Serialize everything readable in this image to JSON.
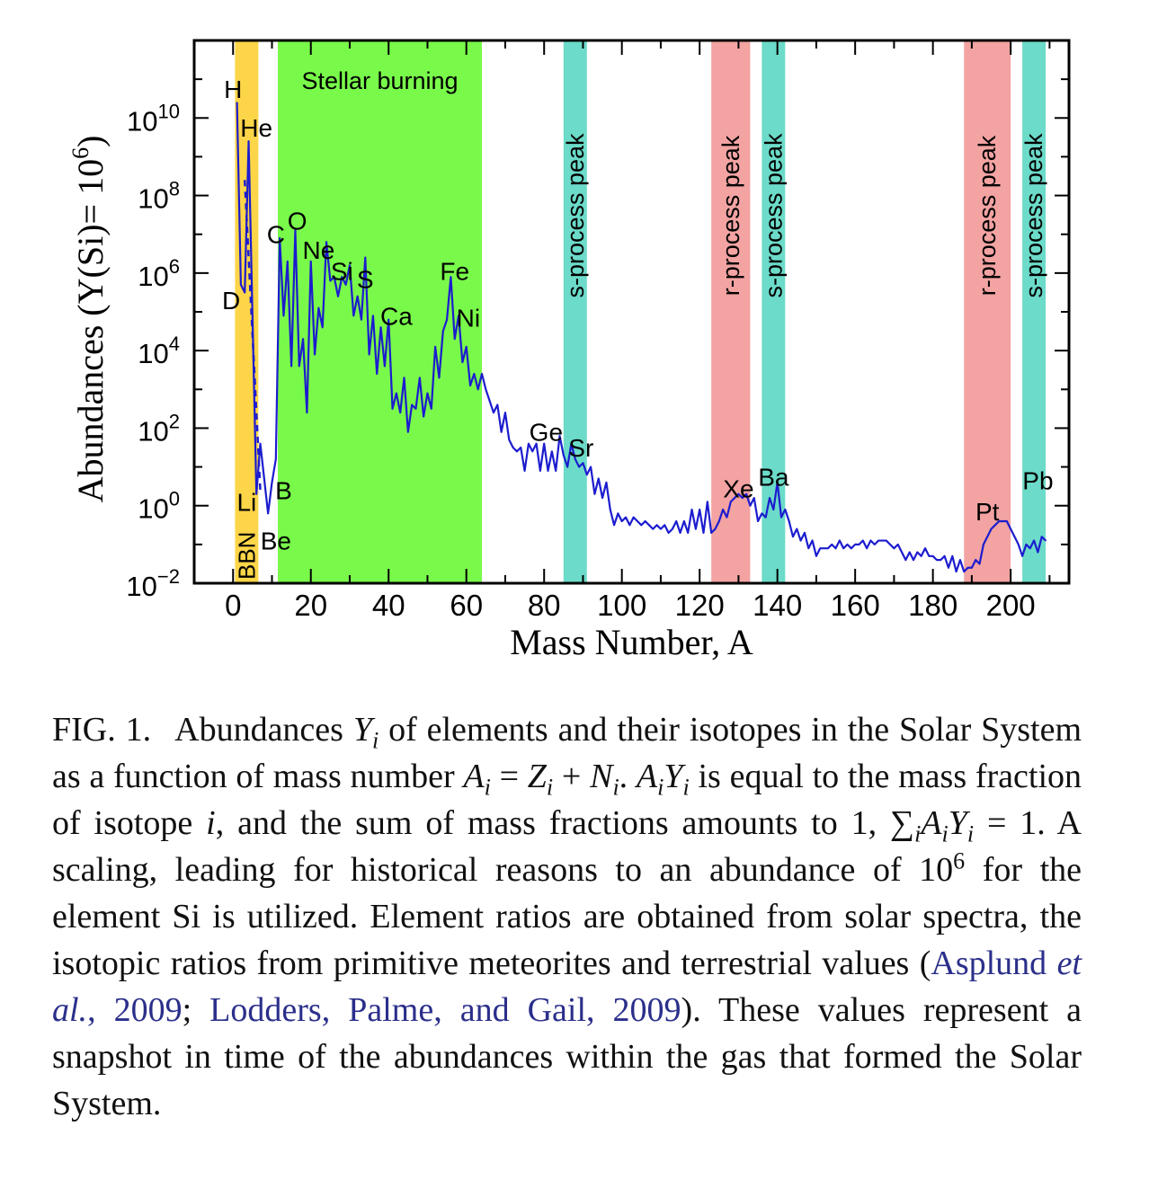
{
  "chart_data": {
    "type": "line",
    "xlabel": "Mass Number, A",
    "ylabel": "Abundances (Y(Si)= 10",
    "ylabel_exp": "6",
    "ylabel_close": ")",
    "xlim": [
      -10,
      215
    ],
    "ylim_log10": [
      -2,
      12
    ],
    "log_scale_y": true,
    "grid": false,
    "x_ticks": [
      0,
      20,
      40,
      60,
      80,
      100,
      120,
      140,
      160,
      180,
      200
    ],
    "x_tick_labels": [
      "0",
      "20",
      "40",
      "60",
      "80",
      "100",
      "120",
      "140",
      "160",
      "180",
      "200"
    ],
    "y_ticks": [
      {
        "base": "10",
        "exp": "−2",
        "value": -2
      },
      {
        "base": "10",
        "exp": "0",
        "value": 0
      },
      {
        "base": "10",
        "exp": "2",
        "value": 2
      },
      {
        "base": "10",
        "exp": "4",
        "value": 4
      },
      {
        "base": "10",
        "exp": "6",
        "value": 6
      },
      {
        "base": "10",
        "exp": "8",
        "value": 8
      },
      {
        "base": "10",
        "exp": "10",
        "value": 10
      }
    ],
    "line_color": "#1c1ccf",
    "bands": [
      {
        "x0": 0.5,
        "x1": 6.5,
        "color": "#fdd548",
        "label": "BBN",
        "orientation": "vertical-bottom"
      },
      {
        "x0": 11.5,
        "x1": 64,
        "color": "#79fa4a",
        "label": "Stellar burning",
        "orientation": "horizontal-top"
      },
      {
        "x0": 85,
        "x1": 91,
        "color": "#6cdbc9",
        "label": "s-process peak",
        "orientation": "vertical"
      },
      {
        "x0": 123,
        "x1": 133,
        "color": "#f2a3a2",
        "label": "r-process peak",
        "orientation": "vertical"
      },
      {
        "x0": 136,
        "x1": 142,
        "color": "#6cdbc9",
        "label": "s-process peak",
        "orientation": "vertical"
      },
      {
        "x0": 188,
        "x1": 200,
        "color": "#f2a3a2",
        "label": "r-process peak",
        "orientation": "vertical"
      },
      {
        "x0": 203,
        "x1": 209,
        "color": "#6cdbc9",
        "label": "s-process peak",
        "orientation": "vertical"
      }
    ],
    "bbn_dashed": {
      "x": [
        3,
        7
      ],
      "log10_y": [
        8.4,
        0.4
      ]
    },
    "series": [
      {
        "x": [
          1,
          2,
          3,
          4,
          6,
          7,
          9,
          10,
          11,
          12,
          13,
          14,
          15,
          16,
          17,
          18,
          19,
          20,
          21,
          22,
          23,
          24,
          25,
          26,
          27,
          28,
          29,
          30,
          31,
          32,
          33,
          34,
          35,
          36,
          37,
          38,
          39,
          40,
          41,
          42,
          43,
          44,
          45,
          46,
          47,
          48,
          49,
          50,
          51,
          52,
          53,
          54,
          55,
          56,
          57,
          58,
          59,
          60,
          61,
          62,
          63,
          64,
          65,
          66,
          67,
          68,
          69,
          70,
          71,
          72,
          73,
          74,
          75,
          76,
          77,
          78,
          79,
          80,
          81,
          82,
          83,
          84,
          85,
          86,
          87,
          88,
          89,
          90,
          91,
          92,
          93,
          94,
          95,
          96,
          97,
          98,
          99,
          100,
          101,
          102,
          103,
          104,
          105,
          106,
          107,
          108,
          109,
          110,
          111,
          112,
          113,
          114,
          115,
          116,
          117,
          118,
          119,
          120,
          121,
          122,
          123,
          124,
          125,
          126,
          127,
          128,
          129,
          130,
          131,
          132,
          133,
          134,
          135,
          136,
          137,
          138,
          139,
          140,
          141,
          142,
          143,
          144,
          145,
          146,
          147,
          148,
          149,
          150,
          151,
          152,
          153,
          154,
          155,
          156,
          157,
          158,
          159,
          160,
          161,
          162,
          163,
          164,
          165,
          166,
          167,
          168,
          169,
          170,
          171,
          172,
          173,
          174,
          175,
          176,
          177,
          178,
          179,
          180,
          181,
          182,
          183,
          184,
          185,
          186,
          187,
          188,
          189,
          190,
          191,
          192,
          193,
          194,
          195,
          196,
          197,
          198,
          199,
          200,
          201,
          202,
          203,
          204,
          205,
          206,
          207,
          208,
          209
        ],
        "log10_y": [
          10.4,
          5.7,
          5.5,
          9.4,
          0.3,
          1.6,
          -0.2,
          0.6,
          1.2,
          6.9,
          4.9,
          6.3,
          3.6,
          7.1,
          3.6,
          4.3,
          2.4,
          6.3,
          3.9,
          5.1,
          4.6,
          6.8,
          5.8,
          5.9,
          5.4,
          5.9,
          5.7,
          6.2,
          4.9,
          5.4,
          4.8,
          6.4,
          3.9,
          4.9,
          3.4,
          4.6,
          3.6,
          4.8,
          2.5,
          2.9,
          2.4,
          3.3,
          1.9,
          2.6,
          2.5,
          3.3,
          2.3,
          2.9,
          2.5,
          4.1,
          3.3,
          4.5,
          4.8,
          5.9,
          4.3,
          4.9,
          3.7,
          4.1,
          3.1,
          3.4,
          3.0,
          3.4,
          3.0,
          2.7,
          2.4,
          2.6,
          1.9,
          2.4,
          1.7,
          1.5,
          1.4,
          1.5,
          0.9,
          1.6,
          1.4,
          1.6,
          0.9,
          1.6,
          0.9,
          1.4,
          0.9,
          1.8,
          1.3,
          1.0,
          1.6,
          1.2,
          1.0,
          1.1,
          0.8,
          1.0,
          0.3,
          0.7,
          0.2,
          0.6,
          -0.1,
          -0.5,
          -0.2,
          -0.4,
          -0.3,
          -0.5,
          -0.3,
          -0.4,
          -0.5,
          -0.4,
          -0.5,
          -0.6,
          -0.5,
          -0.6,
          -0.5,
          -0.7,
          -0.6,
          -0.4,
          -0.7,
          -0.4,
          -0.7,
          -0.1,
          -0.6,
          -0.1,
          -0.7,
          0.1,
          -0.7,
          -0.6,
          -0.4,
          -0.1,
          -0.3,
          0.1,
          0.2,
          0.3,
          0.2,
          0.3,
          0.0,
          0.2,
          -0.4,
          -0.2,
          -0.3,
          0.2,
          -0.1,
          0.6,
          -0.3,
          -0.1,
          -0.4,
          -0.8,
          -0.6,
          -0.9,
          -0.7,
          -1.1,
          -0.9,
          -1.3,
          -1.1,
          -1.1,
          -1.1,
          -1.0,
          -1.1,
          -0.9,
          -1.1,
          -1.0,
          -1.1,
          -1.0,
          -1.0,
          -0.9,
          -1.1,
          -0.9,
          -1.0,
          -0.9,
          -0.9,
          -0.9,
          -1.0,
          -1.1,
          -1.0,
          -1.2,
          -1.4,
          -1.2,
          -1.4,
          -1.2,
          -1.3,
          -1.1,
          -1.3,
          -1.3,
          -1.4,
          -1.4,
          -1.3,
          -1.6,
          -1.3,
          -1.7,
          -1.4,
          -1.7,
          -1.6,
          -1.6,
          -1.4,
          -1.5,
          -1.0,
          -0.8,
          -0.6,
          -0.5,
          -0.4,
          -0.4,
          -0.4,
          -0.6,
          -0.8,
          -1.0,
          -1.3,
          -1.0,
          -1.1,
          -0.9,
          -1.2,
          -0.8,
          -0.9,
          -0.5,
          -0.4,
          0.4,
          -0.8
        ]
      }
    ],
    "annotations": [
      {
        "text": "H",
        "x": 0,
        "log10_y": 10.75
      },
      {
        "text": "He",
        "x": 6,
        "log10_y": 9.75
      },
      {
        "text": "D",
        "x": -0.5,
        "log10_y": 5.3
      },
      {
        "text": "Li",
        "x": 3.5,
        "log10_y": 0.1
      },
      {
        "text": "Be",
        "x": 11,
        "log10_y": -0.9
      },
      {
        "text": "B",
        "x": 13,
        "log10_y": 0.4
      },
      {
        "text": "C",
        "x": 11,
        "log10_y": 7.0
      },
      {
        "text": "O",
        "x": 16.5,
        "log10_y": 7.35
      },
      {
        "text": "Ne",
        "x": 22,
        "log10_y": 6.6
      },
      {
        "text": "Si",
        "x": 28,
        "log10_y": 6.05
      },
      {
        "text": "S",
        "x": 34,
        "log10_y": 5.85
      },
      {
        "text": "Ca",
        "x": 42,
        "log10_y": 4.9
      },
      {
        "text": "Fe",
        "x": 57,
        "log10_y": 6.05
      },
      {
        "text": "Ni",
        "x": 60.5,
        "log10_y": 4.85
      },
      {
        "text": "Ge",
        "x": 80.5,
        "log10_y": 1.9
      },
      {
        "text": "Sr",
        "x": 89.5,
        "log10_y": 1.5
      },
      {
        "text": "Xe",
        "x": 130,
        "log10_y": 0.45
      },
      {
        "text": "Ba",
        "x": 139,
        "log10_y": 0.75
      },
      {
        "text": "Pt",
        "x": 194,
        "log10_y": -0.15
      },
      {
        "text": "Pb",
        "x": 207,
        "log10_y": 0.65
      }
    ]
  },
  "caption": {
    "label": "FIG. 1.",
    "p1": "Abundances ",
    "Y": "Y",
    "i": "i",
    "p2": " of elements and their isotopes in the Solar System as a function of mass number ",
    "A": "A",
    "eq1": " = ",
    "Z": "Z",
    "plus": " + ",
    "N": "N",
    "p3": ". ",
    "p4": " is equal to the mass fraction of isotope ",
    "p5": ", and the sum of mass fractions amounts to 1, ",
    "sum": "∑",
    "eq2": " = 1. A scaling, leading for historical reasons to an abundance of 10",
    "exp6": "6",
    "p6": " for the element Si is utilized. Element ratios are obtained from solar spectra, the isotopic ratios from primitive meteorites and terrestrial values (",
    "cite1a": "Asplund ",
    "cite1b": "et al.",
    "cite1c": ", 2009",
    "semi": "; ",
    "cite2": "Lodders, Palme, and Gail, 2009",
    "p7": "). These values represent a snapshot in time of the abundances within the gas that formed the Solar System."
  }
}
